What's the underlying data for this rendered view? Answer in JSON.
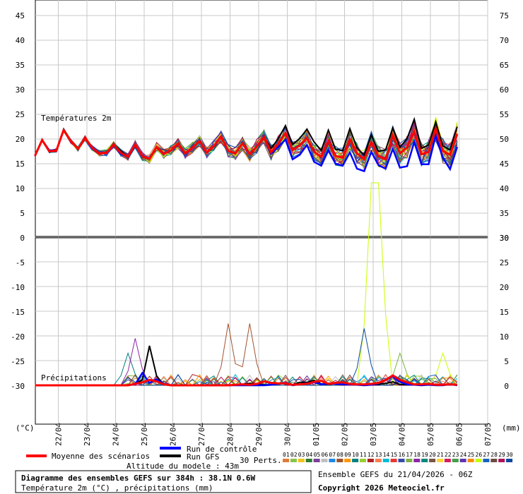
{
  "chart_data": {
    "type": "line",
    "title": "Diagramme des ensembles GEFS sur 384h : 38.1N 0.6W",
    "subtitle": "Température 2m (°C) , précipitations (mm)",
    "run_info": "Ensemble GEFS du 21/04/2026 - 06Z",
    "copyright": "Copyright 2026 Meteociel.fr",
    "altitude": "Altitude du modele : 43m",
    "temperature_panel": {
      "label": "Températures 2m",
      "y_left_ticks": [
        "45",
        "40",
        "35",
        "30",
        "25",
        "20",
        "15",
        "10",
        "5",
        "0"
      ],
      "y_right_ticks": [
        "75",
        "70",
        "65",
        "60",
        "55",
        "50",
        "45",
        "40",
        "35",
        "30"
      ],
      "ylim": [
        0,
        47.5
      ]
    },
    "precipitation_panel": {
      "label": "Précipitations",
      "y_left_ticks": [
        "-5",
        "-10",
        "-15",
        "-20",
        "-25",
        "-30"
      ],
      "y_right_ticks": [
        "25",
        "20",
        "15",
        "10",
        "5",
        "0"
      ],
      "ylim": [
        0,
        30
      ]
    },
    "left_unit": "(°C)",
    "right_unit": "(mm)",
    "x_ticks": [
      "22/04",
      "23/04",
      "24/04",
      "25/04",
      "26/04",
      "27/04",
      "28/04",
      "29/04",
      "30/04",
      "01/05",
      "02/05",
      "03/05",
      "04/05",
      "05/05",
      "06/05",
      "07/05"
    ],
    "legend": {
      "mean": "Moyenne des scénarios",
      "control": "Run de contrôle",
      "gfs": "Run GFS",
      "perts": "30 Perts."
    },
    "member_ids": [
      "01",
      "02",
      "03",
      "04",
      "05",
      "06",
      "07",
      "08",
      "09",
      "10",
      "11",
      "12",
      "13",
      "14",
      "15",
      "16",
      "17",
      "18",
      "19",
      "20",
      "21",
      "22",
      "23",
      "24",
      "25",
      "26",
      "27",
      "28",
      "29",
      "30"
    ],
    "member_colors": [
      "#e07b39",
      "#8bc34a",
      "#f0c419",
      "#2e7d32",
      "#7b3f99",
      "#c0c0c0",
      "#1e88e5",
      "#a0522d",
      "#ff9800",
      "#008080",
      "#9acd32",
      "#b22222",
      "#ff7f50",
      "#00bcd4",
      "#e53935",
      "#3949ab",
      "#7cb342",
      "#8e24aa",
      "#00897b",
      "#795548",
      "#fdd835",
      "#d81b60",
      "#43a047",
      "#5e35b1",
      "#fb8c00",
      "#c6ff00",
      "#1565c0",
      "#6d4c41",
      "#ad1457",
      "#0d47a1"
    ],
    "series_colors": {
      "mean": "#ff0000",
      "control": "#0000ff",
      "gfs": "#000000"
    },
    "steps_per_day": 4,
    "temperature": {
      "mean": [
        16.6,
        19.8,
        17.5,
        17.7,
        21.8,
        19.6,
        18.0,
        20.2,
        18.2,
        17.1,
        17.2,
        18.9,
        17.2,
        16.4,
        18.9,
        16.5,
        16.0,
        18.4,
        17.0,
        17.7,
        19.1,
        17.1,
        18.3,
        19.6,
        17.3,
        18.6,
        20.5,
        17.6,
        17.1,
        19.1,
        16.9,
        18.5,
        20.4,
        17.3,
        19.1,
        21.2,
        17.8,
        18.7,
        20.2,
        17.4,
        16.4,
        19.6,
        16.6,
        16.2,
        19.9,
        17.1,
        15.9,
        19.4,
        16.5,
        15.9,
        20.7,
        17.1,
        18.3,
        21.5,
        16.9,
        17.4,
        22.1,
        17.6,
        16.8,
        21.0
      ],
      "control": [
        16.6,
        19.8,
        17.7,
        17.7,
        21.8,
        19.6,
        18.0,
        20.2,
        18.0,
        17.1,
        17.2,
        18.9,
        17.0,
        16.4,
        18.9,
        16.6,
        16.0,
        18.4,
        17.0,
        17.7,
        19.1,
        17.1,
        18.3,
        19.6,
        17.3,
        18.6,
        20.5,
        17.6,
        17.1,
        19.1,
        16.9,
        18.5,
        20.4,
        17.0,
        18.4,
        19.9,
        15.9,
        16.8,
        18.8,
        15.4,
        14.6,
        17.7,
        15.0,
        14.6,
        17.3,
        14.0,
        13.5,
        17.4,
        14.7,
        14.0,
        18.0,
        14.2,
        14.5,
        19.4,
        14.9,
        14.9,
        20.7,
        16.2,
        13.9,
        18.4
      ],
      "gfs": [
        16.6,
        19.8,
        17.4,
        17.7,
        21.8,
        19.6,
        18.0,
        20.2,
        18.3,
        17.1,
        17.2,
        18.9,
        17.6,
        16.4,
        18.9,
        16.4,
        16.0,
        18.4,
        17.0,
        17.7,
        19.1,
        17.1,
        18.3,
        19.6,
        17.3,
        18.6,
        20.5,
        17.6,
        17.1,
        19.1,
        16.9,
        18.5,
        20.4,
        18.1,
        20.1,
        22.7,
        18.9,
        20.1,
        22.0,
        19.4,
        17.7,
        21.8,
        17.9,
        17.7,
        22.1,
        18.2,
        16.7,
        20.8,
        17.5,
        17.8,
        22.3,
        18.3,
        20.1,
        24.0,
        18.1,
        18.8,
        23.4,
        18.6,
        17.8,
        22.5
      ]
    },
    "precipitation": {
      "mean": [
        0,
        0,
        0,
        0,
        0,
        0,
        0,
        0,
        0,
        0,
        0,
        0,
        0,
        0,
        0.3,
        0.6,
        1.1,
        0.8,
        0.2,
        0,
        0,
        0,
        0,
        0,
        0,
        0,
        0,
        0,
        0.1,
        0.2,
        0.1,
        0.3,
        0.8,
        0.5,
        0.4,
        0.4,
        0.1,
        0.2,
        0.3,
        0.7,
        0.9,
        0.3,
        0.5,
        0.6,
        0.3,
        0.2,
        0.2,
        0.3,
        0.5,
        1.1,
        2.0,
        1.1,
        0.6,
        0.2,
        0.2,
        0.3,
        0.1,
        0.1,
        0.2,
        0.1
      ],
      "control": [
        0,
        0,
        0,
        0,
        0,
        0,
        0,
        0,
        0,
        0,
        0,
        0,
        0,
        0,
        0.2,
        2.5,
        0.5,
        1.2,
        0.3,
        0,
        0,
        0,
        0,
        0,
        0,
        0,
        0,
        0,
        0,
        0,
        0,
        0,
        0,
        0.1,
        0.3,
        0.5,
        0,
        0.2,
        0.4,
        0.6,
        0.2,
        0.4,
        0.3,
        0.2,
        0.2,
        0.1,
        0,
        0.1,
        0.4,
        1.1,
        1.8,
        0.7,
        0.2,
        0.1,
        0,
        0.1,
        0,
        0,
        0.2,
        0
      ],
      "gfs": [
        0,
        0,
        0,
        0,
        0,
        0,
        0,
        0,
        0,
        0,
        0,
        0,
        0,
        0,
        0.3,
        1.1,
        8.0,
        1.9,
        0.1,
        0,
        0,
        0,
        0,
        0,
        0,
        0,
        0,
        0,
        0,
        0.2,
        0.4,
        0.3,
        0.1,
        0.1,
        0.4,
        0.3,
        0.1,
        0.6,
        0.6,
        1.0,
        0.3,
        0.2,
        0.3,
        0.1,
        0.2,
        0.1,
        0.2,
        0.1,
        0.2,
        0.4,
        0.7,
        0.2,
        0.1,
        0.1,
        0,
        0.2,
        0,
        0,
        0.3,
        0
      ]
    },
    "precipitation_peaks": [
      {
        "member": 26,
        "step": 47,
        "value": 41
      },
      {
        "member": 26,
        "step": 48,
        "value": 41
      },
      {
        "member": 8,
        "step": 27,
        "value": 12.5
      },
      {
        "member": 8,
        "step": 30,
        "value": 12.5
      },
      {
        "member": 30,
        "step": 46,
        "value": 11.5
      },
      {
        "member": 18,
        "step": 14,
        "value": 9.5
      },
      {
        "member": 17,
        "step": 51,
        "value": 6.5
      },
      {
        "member": 26,
        "step": 57,
        "value": 6.5
      },
      {
        "member": 10,
        "step": 13,
        "value": 6.5
      }
    ]
  }
}
